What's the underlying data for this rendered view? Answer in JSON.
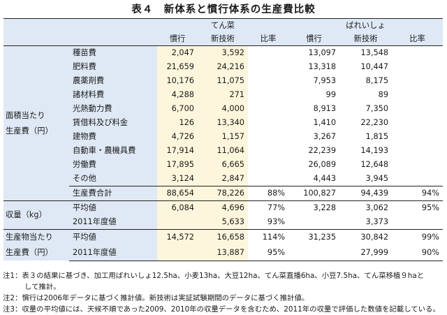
{
  "title": "表４　新体系と慣行体系の生産費比較",
  "crops": [
    "てん菜",
    "ばれいしょ"
  ],
  "columns": [
    "慣行",
    "新技術",
    "比率",
    "慣行",
    "新技術",
    "比率"
  ],
  "cost_group_label": [
    "面積当たり",
    "生産費（円）"
  ],
  "cost_rows": [
    {
      "item": "種苗費",
      "v": [
        "2,047",
        "3,592",
        "",
        "13,097",
        "13,548",
        ""
      ]
    },
    {
      "item": "肥料費",
      "v": [
        "21,659",
        "24,216",
        "",
        "13,318",
        "10,447",
        ""
      ]
    },
    {
      "item": "農薬剤費",
      "v": [
        "10,176",
        "11,075",
        "",
        "7,953",
        "8,175",
        ""
      ]
    },
    {
      "item": "諸材料費",
      "v": [
        "4,288",
        "271",
        "",
        "99",
        "89",
        ""
      ]
    },
    {
      "item": "光熱動力費",
      "v": [
        "6,700",
        "4,000",
        "",
        "8,913",
        "7,350",
        ""
      ]
    },
    {
      "item": "賃借料及び料金",
      "v": [
        "126",
        "13,340",
        "",
        "1,410",
        "22,230",
        ""
      ]
    },
    {
      "item": "建物費",
      "v": [
        "4,726",
        "1,157",
        "",
        "3,267",
        "1,815",
        ""
      ]
    },
    {
      "item": "自動車・農機具費",
      "v": [
        "17,914",
        "11,064",
        "",
        "22,239",
        "14,193",
        ""
      ]
    },
    {
      "item": "労働費",
      "v": [
        "17,895",
        "6,665",
        "",
        "26,089",
        "12,648",
        ""
      ]
    },
    {
      "item": "その他",
      "v": [
        "3,124",
        "2,847",
        "",
        "4,443",
        "3,945",
        ""
      ]
    },
    {
      "item": "生産費合計",
      "v": [
        "88,654",
        "78,226",
        "88%",
        "100,827",
        "94,439",
        "94%"
      ]
    }
  ],
  "yield_group_label": "収量（kg）",
  "yield_rows": [
    {
      "item": "平均値",
      "v": [
        "6,084",
        "4,696",
        "77%",
        "3,228",
        "3,062",
        "95%"
      ]
    },
    {
      "item": "2011年度値",
      "v": [
        "",
        "5,633",
        "93%",
        "",
        "3,373",
        ""
      ]
    }
  ],
  "product_group_label": [
    "生産物当たり",
    "生産費（円）"
  ],
  "product_rows": [
    {
      "item": "平均値",
      "v": [
        "14,572",
        "16,658",
        "114%",
        "31,235",
        "30,842",
        "99%"
      ]
    },
    {
      "item": "2011年度値",
      "v": [
        "",
        "13,887",
        "95%",
        "",
        "27,999",
        "90%"
      ]
    }
  ],
  "notes": [
    "注1：表３の結果に基づき、加工用ばれいしょ12.5ha、小麦13ha、大豆12ha、てん菜直播6ha、小豆7.5ha、てん菜移植９haと",
    "して推計。",
    "注2：慣行は2006年データに基づく推計値。新技術は実証試験期間のデータに基づく推計値。",
    "注3：収量の平均値には、天候不順であった2009、2010年の収量データを含むため、2011年の収量で評価した数値を記載している。"
  ]
}
